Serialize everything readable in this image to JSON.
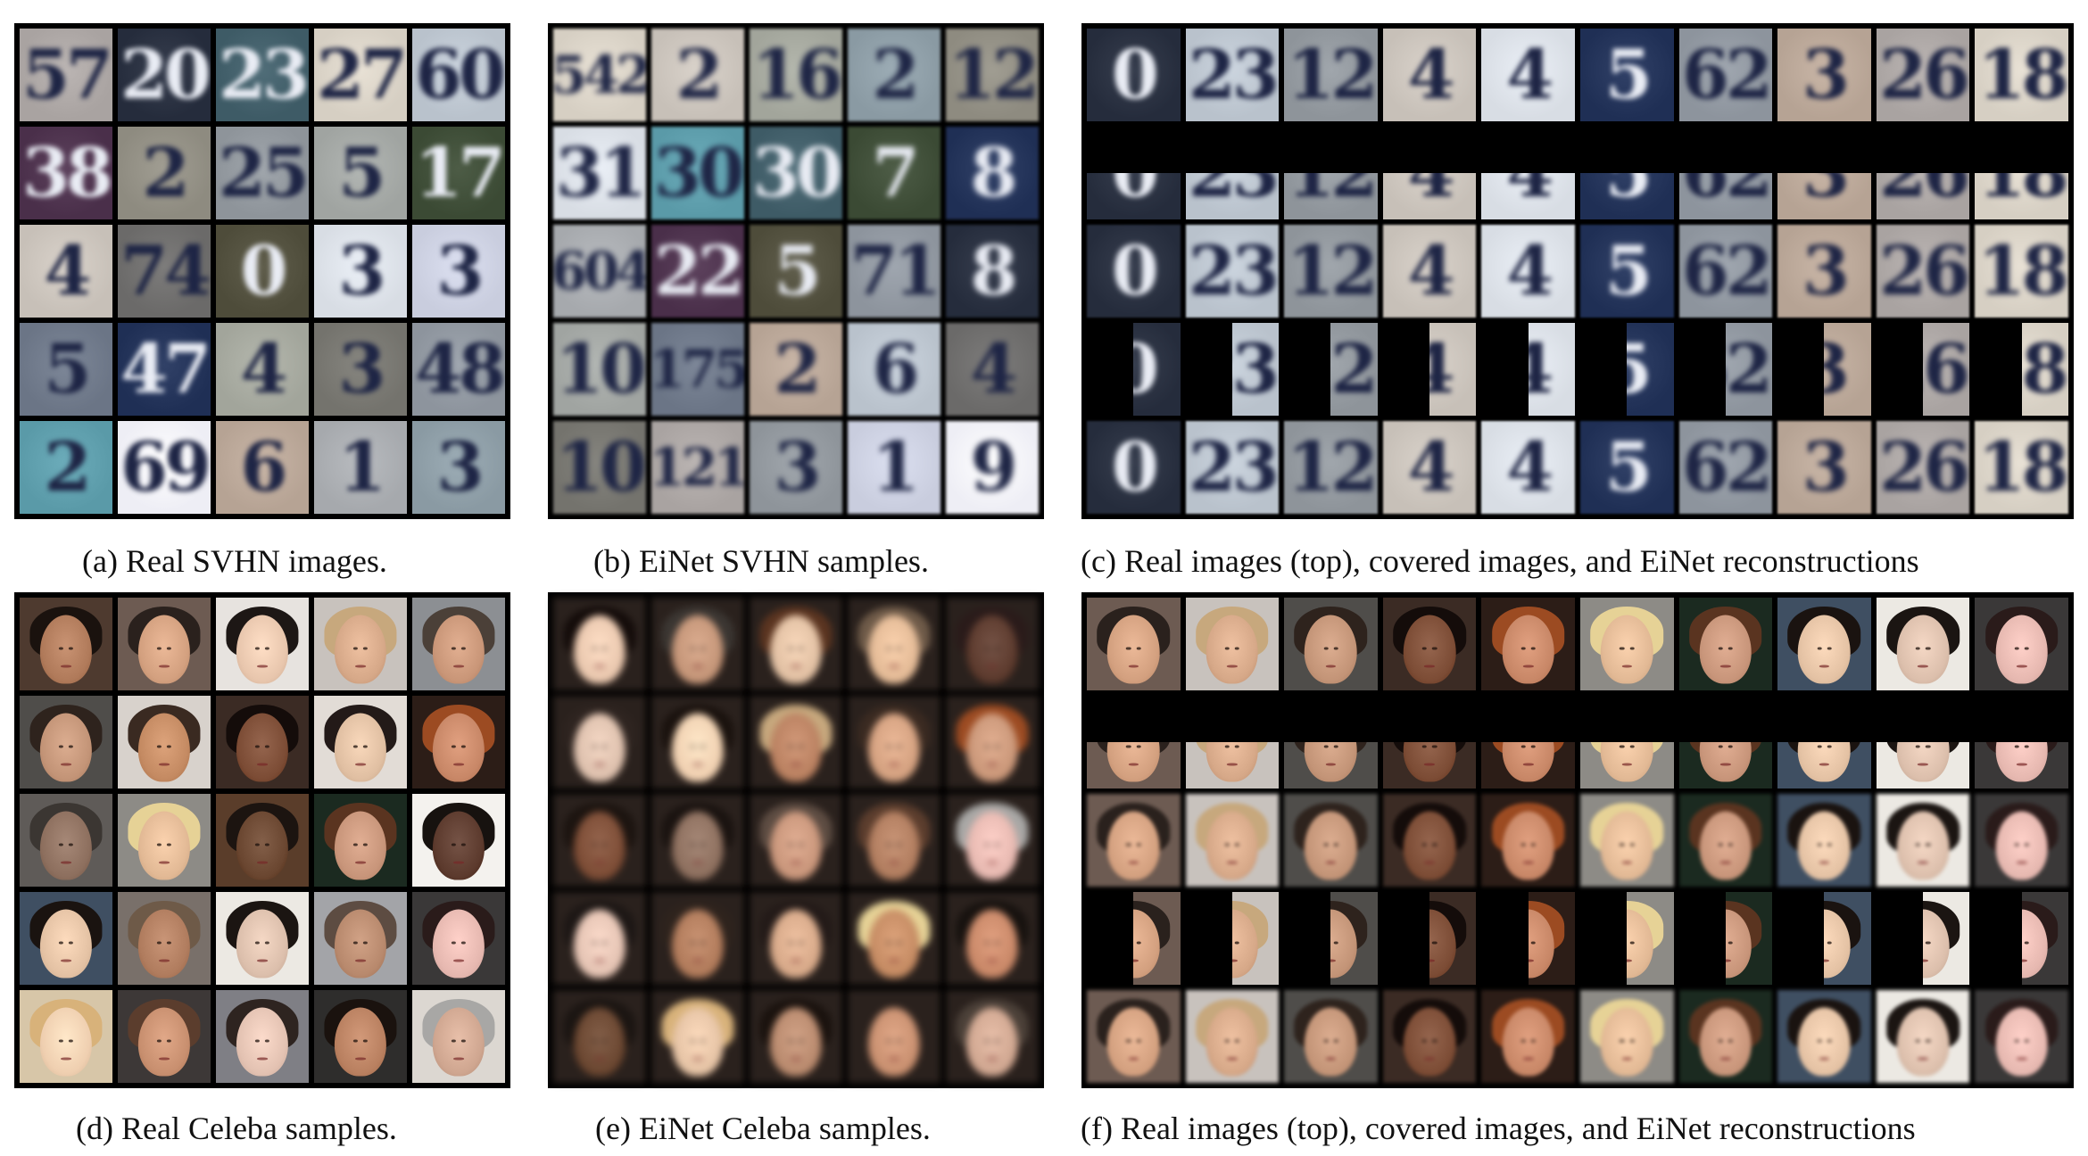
{
  "captions": {
    "a": "(a) Real SVHN images.",
    "b": "(b) EiNet SVHN samples.",
    "c": "(c) Real images (top), covered images, and EiNet reconstructions",
    "d": "(d) Real Celeba samples.",
    "e": "(e) EiNet Celeba samples.",
    "f": "(f) Real images (top), covered images, and EiNet reconstructions"
  },
  "svhn_real_digits": [
    "57",
    "20",
    "23",
    "27",
    "60",
    "38",
    "2",
    "25",
    "5",
    "17",
    "4",
    "74",
    "0",
    "3",
    "3",
    "5",
    "47",
    "4",
    "3",
    "48",
    "2",
    "69",
    "6",
    "1",
    "3"
  ],
  "svhn_sample_digits": [
    "542",
    "2",
    "16",
    "2",
    "12",
    "31",
    "30",
    "30",
    "7",
    "8",
    "604",
    "22",
    "5",
    "71",
    "8",
    "10",
    "175",
    "2",
    "6",
    "4",
    "10",
    "121",
    "3",
    "1",
    "9"
  ],
  "svhn_recon_digits": [
    "0",
    "23",
    "12",
    "4",
    "4",
    "5",
    "62",
    "3",
    "26",
    "18"
  ],
  "colors": {
    "svhn_backgrounds": [
      "#a9a3a1",
      "#252c3c",
      "#3e5b66",
      "#d6cfc3",
      "#b9c2cc",
      "#4a2f4a",
      "#8e8b80",
      "#8e949a",
      "#a0a4a1",
      "#3b4a34",
      "#c7c0b8",
      "#6b6a69",
      "#4e4c3a",
      "#d8dde4",
      "#c9cdde",
      "#6b7586",
      "#1f2f55",
      "#a2a59b",
      "#74736d",
      "#8d949d",
      "#5a9aa8",
      "#eeeef5",
      "#b6a394",
      "#a6a9ad",
      "#8a9aa3"
    ],
    "face_skin": [
      "#b07a5a",
      "#d3a07f",
      "#e8c6ad",
      "#d6a888",
      "#c99678",
      "#c39477",
      "#c48a62",
      "#7c4c35",
      "#e0bfa2",
      "#c88767",
      "#8d6f5e",
      "#e2b995",
      "#6a4630",
      "#c8957a",
      "#5c3a2d",
      "#e4c2a4",
      "#b07c5e",
      "#dcbfac",
      "#b8896d",
      "#e6b8b0",
      "#efcfb0",
      "#c88f6f",
      "#e3c2b2",
      "#b98060",
      "#cfa690"
    ],
    "face_hair": [
      "#1a120e",
      "#2a211d",
      "#1d1715",
      "#c7a87d",
      "#4b4038",
      "#2e231d",
      "#3a2a21",
      "#140c0a",
      "#231a18",
      "#9c4b22",
      "#3b3632",
      "#e6d296",
      "#1c1410",
      "#5a3420",
      "#17120f",
      "#1a1310",
      "#6e5a48",
      "#1b1512",
      "#5d4c42",
      "#2a1b1a",
      "#d8b27a",
      "#5b3d2d",
      "#2e2420",
      "#1a120e",
      "#a8a7a5"
    ],
    "face_bg": [
      "#4e3a2f",
      "#6d5b52",
      "#e7e3df",
      "#c8c2bd",
      "#8c8f93",
      "#4f4d4a",
      "#d8d2cc",
      "#3b2b24",
      "#e2dcd6",
      "#2c1d17",
      "#5f5b58",
      "#8d8b86",
      "#5a3d2a",
      "#1b2a20",
      "#f4f2ee",
      "#3f4f62",
      "#79706a",
      "#ece9e3",
      "#a3a4a8",
      "#3a3838",
      "#d7c6a8",
      "#3d3837",
      "#7f7f85",
      "#2e2d2c",
      "#dcd7d1"
    ]
  }
}
